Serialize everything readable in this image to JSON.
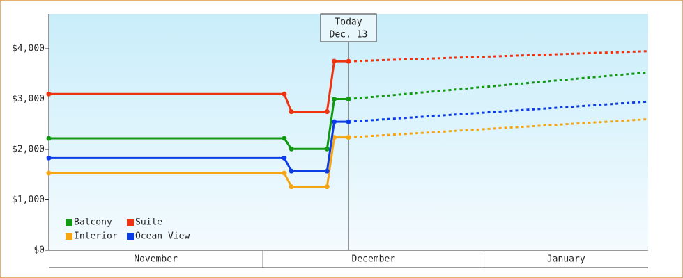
{
  "chart_data": {
    "type": "line",
    "categories": [
      "November",
      "December",
      "January"
    ],
    "xlim": [
      0,
      84
    ],
    "xticks": [
      30,
      61
    ],
    "ylim": [
      0,
      4690
    ],
    "yticks": [
      {
        "value": 0,
        "label": "$0"
      },
      {
        "value": 1000,
        "label": "$1,000"
      },
      {
        "value": 2000,
        "label": "$2,000"
      },
      {
        "value": 3000,
        "label": "$3,000"
      },
      {
        "value": 4000,
        "label": "$4,000"
      }
    ],
    "annotation": {
      "x": 42,
      "text": [
        "Today",
        "Dec. 13"
      ]
    },
    "x": [
      0,
      33,
      34,
      39,
      40,
      42,
      84
    ],
    "series": [
      {
        "name": "Balcony",
        "color": "#119911",
        "values": [
          2220,
          2220,
          2010,
          2010,
          3000,
          3000,
          3530
        ]
      },
      {
        "name": "Suite",
        "color": "#ee3311",
        "values": [
          3100,
          3100,
          2750,
          2750,
          3750,
          3750,
          3950
        ]
      },
      {
        "name": "Interior",
        "color": "#f5a511",
        "values": [
          1530,
          1530,
          1260,
          1260,
          2240,
          2240,
          2600
        ]
      },
      {
        "name": "Ocean View",
        "color": "#0a3de8",
        "values": [
          1830,
          1830,
          1570,
          1570,
          2550,
          2550,
          2950
        ]
      }
    ]
  }
}
